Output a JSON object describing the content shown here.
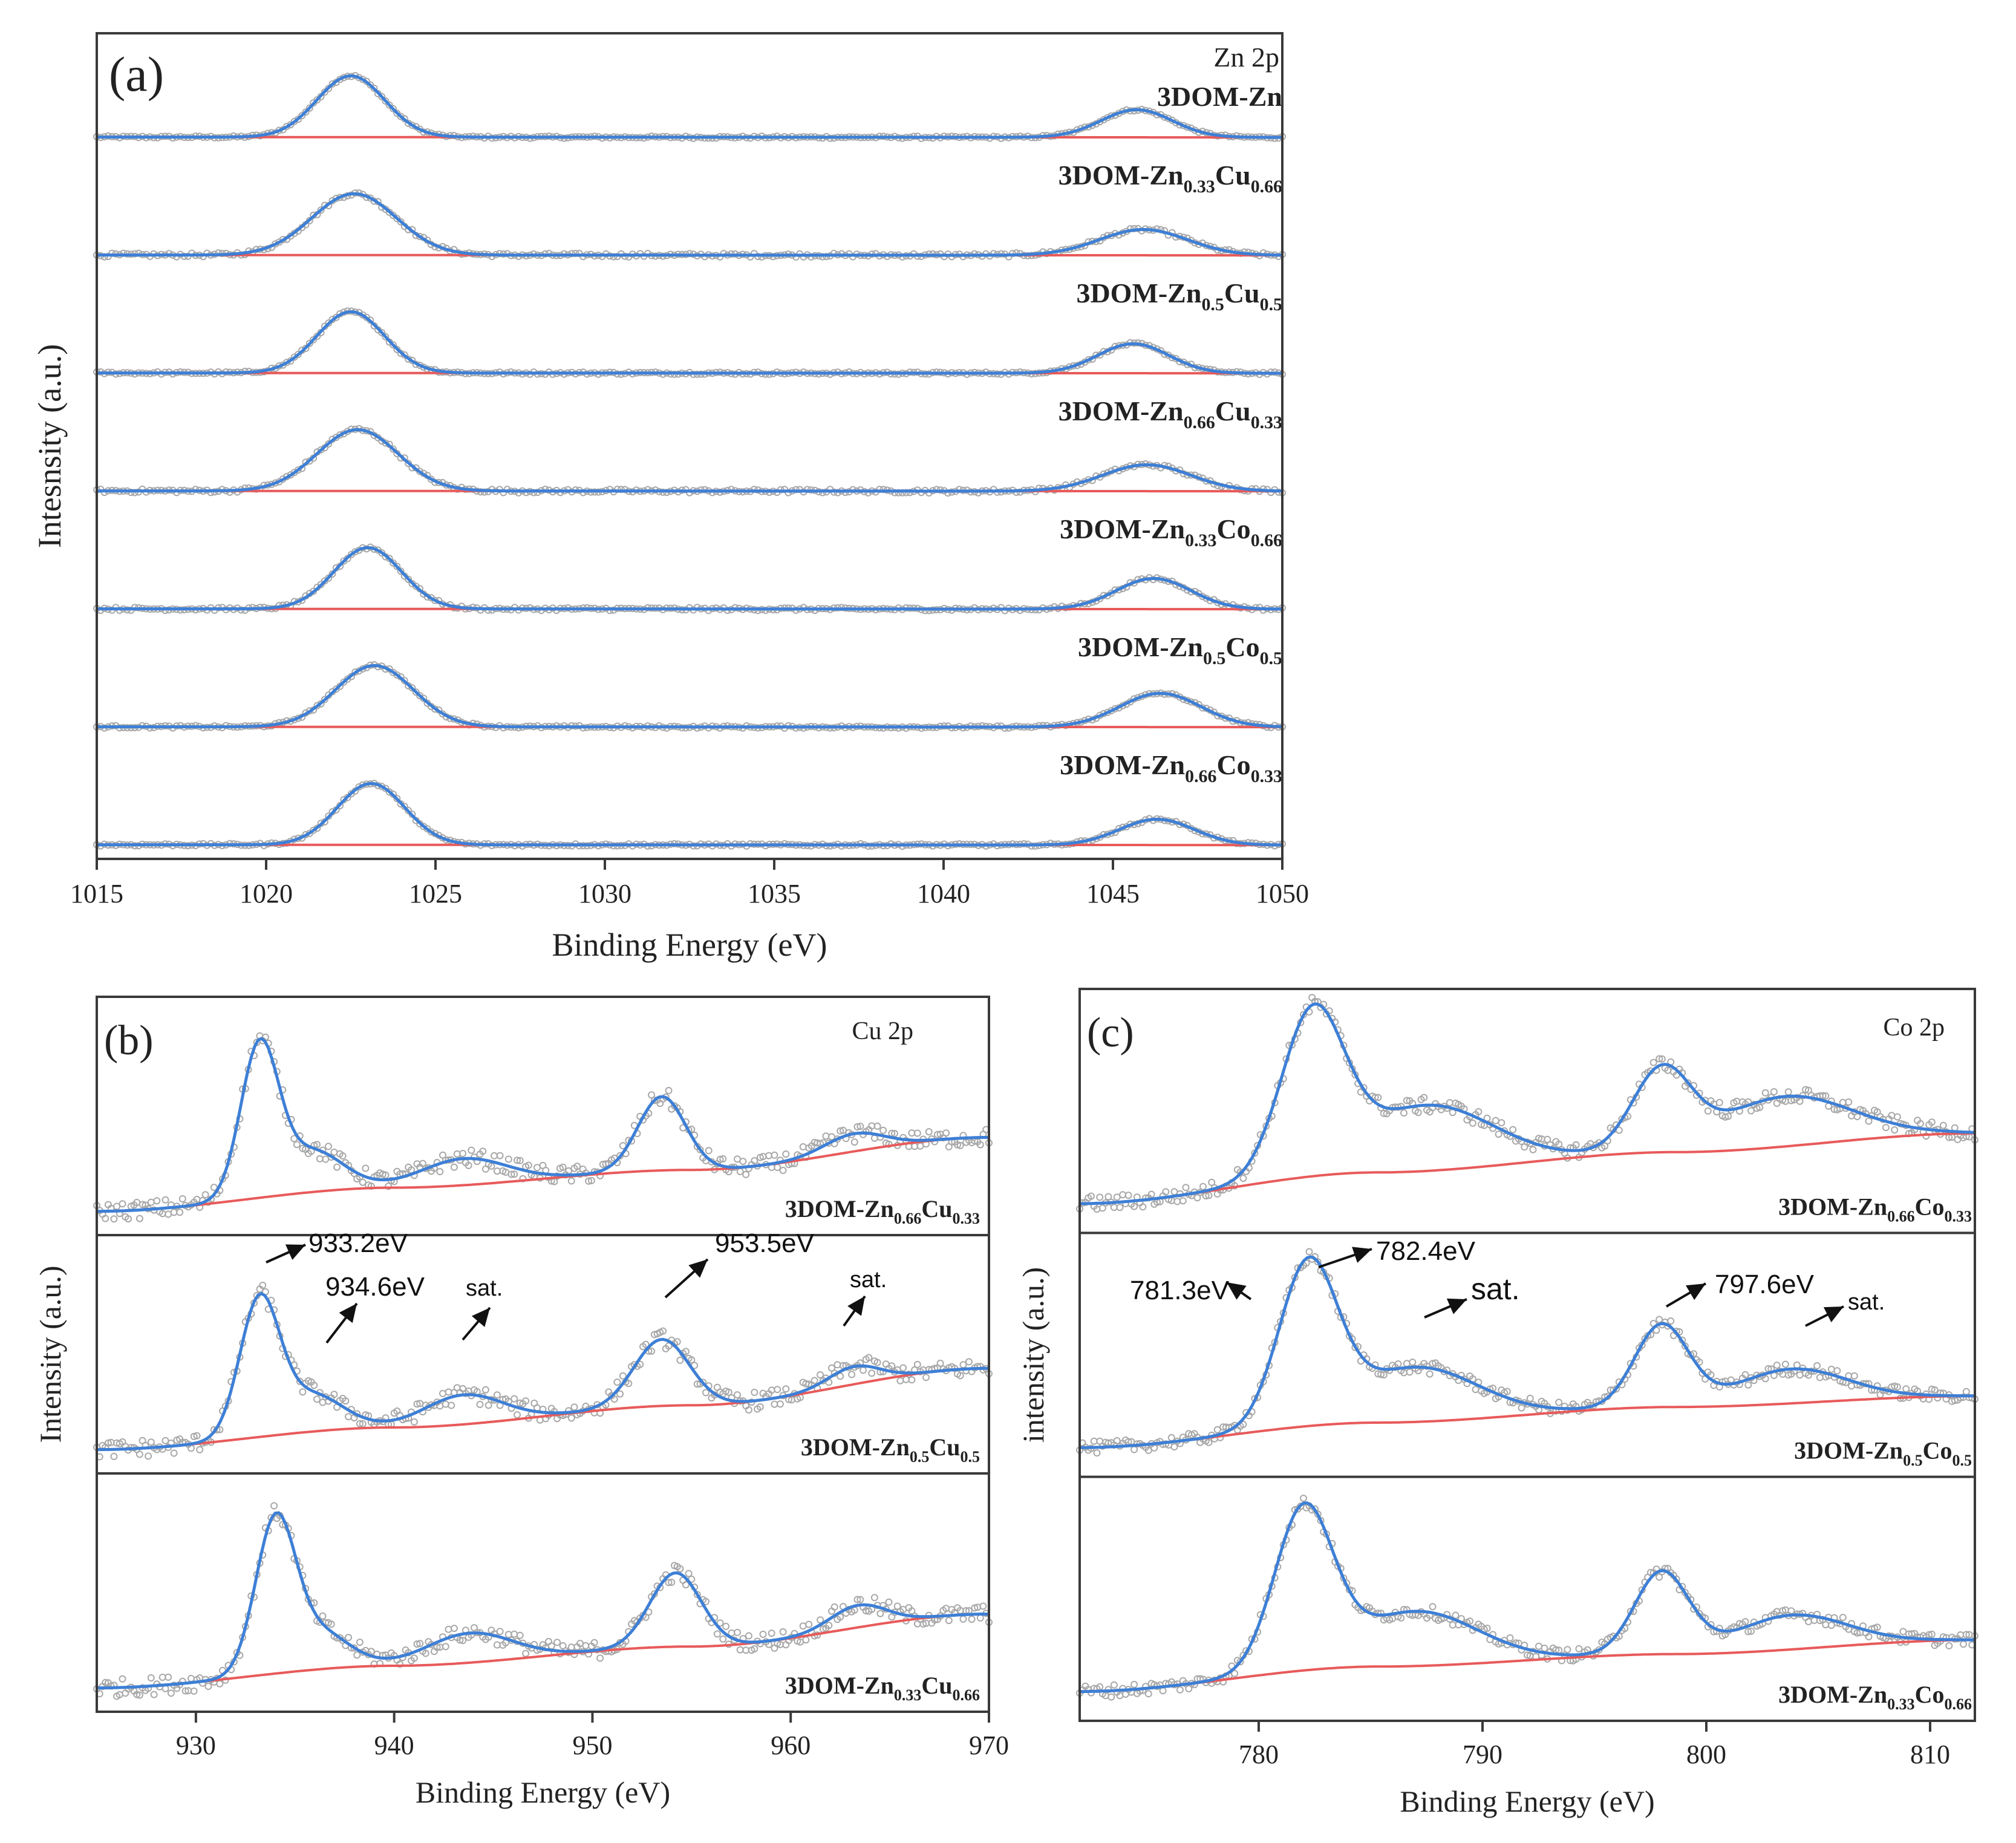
{
  "chart_data": [
    {
      "panel": "(a)",
      "type": "line",
      "title": "Zn 2p",
      "xlabel": "Binding Energy (eV)",
      "ylabel": "Intesnsity (a.u.)",
      "xlim": [
        1015,
        1050
      ],
      "xticks": [
        1015,
        1020,
        1025,
        1030,
        1035,
        1040,
        1045,
        1050
      ],
      "series": [
        {
          "name": "3DOM-Zn",
          "label_main": "3DOM-Zn",
          "subs": [],
          "peaks": [
            {
              "x": 1022.5,
              "h": 1.0,
              "w": 1.0
            },
            {
              "x": 1045.7,
              "h": 0.45,
              "w": 1.05
            }
          ],
          "noise": 0.018
        },
        {
          "name": "3DOM-Zn0.33Cu0.66",
          "label_main": "3DOM-Zn",
          "subs": [
            "0.33",
            "Cu",
            "0.66"
          ],
          "peaks": [
            {
              "x": 1022.6,
              "h": 1.0,
              "w": 1.25
            },
            {
              "x": 1045.9,
              "h": 0.42,
              "w": 1.3
            }
          ],
          "noise": 0.03
        },
        {
          "name": "3DOM-Zn0.5Cu0.5",
          "label_main": "3DOM-Zn",
          "subs": [
            "0.5",
            "Cu",
            "0.5"
          ],
          "peaks": [
            {
              "x": 1022.5,
              "h": 1.0,
              "w": 1.0
            },
            {
              "x": 1045.6,
              "h": 0.48,
              "w": 1.05
            }
          ],
          "noise": 0.02
        },
        {
          "name": "3DOM-Zn0.66Cu0.33",
          "label_main": "3DOM-Zn",
          "subs": [
            "0.66",
            "Cu",
            "0.33"
          ],
          "peaks": [
            {
              "x": 1022.7,
              "h": 1.0,
              "w": 1.2
            },
            {
              "x": 1046.0,
              "h": 0.43,
              "w": 1.3
            }
          ],
          "noise": 0.03
        },
        {
          "name": "3DOM-Zn0.33Co0.66",
          "label_main": "3DOM-Zn",
          "subs": [
            "0.33",
            "Co",
            "0.66"
          ],
          "peaks": [
            {
              "x": 1023.0,
              "h": 1.0,
              "w": 1.0
            },
            {
              "x": 1046.2,
              "h": 0.5,
              "w": 1.1
            }
          ],
          "noise": 0.025
        },
        {
          "name": "3DOM-Zn0.5Co0.5",
          "label_main": "3DOM-Zn",
          "subs": [
            "0.5",
            "Co",
            "0.5"
          ],
          "peaks": [
            {
              "x": 1023.2,
              "h": 1.0,
              "w": 1.15
            },
            {
              "x": 1046.4,
              "h": 0.55,
              "w": 1.2
            }
          ],
          "noise": 0.02
        },
        {
          "name": "3DOM-Zn0.66Co0.33",
          "label_main": "3DOM-Zn",
          "subs": [
            "0.66",
            "Co",
            "0.33"
          ],
          "peaks": [
            {
              "x": 1023.1,
              "h": 1.0,
              "w": 1.0
            },
            {
              "x": 1046.3,
              "h": 0.42,
              "w": 1.1
            }
          ],
          "noise": 0.02
        }
      ],
      "label_extra": "3DOM-Zn"
    },
    {
      "panel": "(b)",
      "type": "line",
      "title": "Cu 2p",
      "xlabel": "Binding Energy (eV)",
      "ylabel": "Intensity (a.u.)",
      "xlim": [
        925,
        970
      ],
      "xticks": [
        930,
        940,
        950,
        960,
        970
      ],
      "series": [
        {
          "name": "3DOM-Zn0.66Cu0.33",
          "label_main": "3DOM-Zn",
          "subs": [
            "0.66",
            "Cu",
            "0.33"
          ],
          "peaks": [
            {
              "x": 933.2,
              "h": 1.0,
              "w": 0.95
            },
            {
              "x": 935.8,
              "h": 0.28,
              "w": 1.6
            },
            {
              "x": 943.5,
              "h": 0.18,
              "w": 2.2
            },
            {
              "x": 953.5,
              "h": 0.5,
              "w": 1.2
            },
            {
              "x": 963.2,
              "h": 0.12,
              "w": 1.5
            }
          ],
          "bg": [
            0.0,
            0.16,
            0.28,
            0.5
          ],
          "noise": 0.06
        },
        {
          "name": "3DOM-Zn0.5Cu0.5",
          "label_main": "3DOM-Zn",
          "subs": [
            "0.5",
            "Cu",
            "0.5"
          ],
          "peaks": [
            {
              "x": 933.2,
              "h": 0.9,
              "w": 1.0
            },
            {
              "x": 935.8,
              "h": 0.25,
              "w": 1.6
            },
            {
              "x": 943.5,
              "h": 0.2,
              "w": 2.0
            },
            {
              "x": 953.5,
              "h": 0.45,
              "w": 1.4
            },
            {
              "x": 963.2,
              "h": 0.12,
              "w": 1.3
            }
          ],
          "bg": [
            0.0,
            0.15,
            0.3,
            0.55
          ],
          "noise": 0.06
        },
        {
          "name": "3DOM-Zn0.33Cu0.66",
          "label_main": "3DOM-Zn",
          "subs": [
            "0.33",
            "Cu",
            "0.66"
          ],
          "peaks": [
            {
              "x": 934.0,
              "h": 1.0,
              "w": 1.0
            },
            {
              "x": 936.2,
              "h": 0.25,
              "w": 1.5
            },
            {
              "x": 943.8,
              "h": 0.2,
              "w": 2.2
            },
            {
              "x": 954.2,
              "h": 0.5,
              "w": 1.3
            },
            {
              "x": 963.4,
              "h": 0.15,
              "w": 1.4
            }
          ],
          "bg": [
            0.0,
            0.15,
            0.28,
            0.5
          ],
          "noise": 0.06
        }
      ],
      "annotations": [
        "933.2eV",
        "934.6eV",
        "sat.",
        "953.5eV",
        "sat."
      ]
    },
    {
      "panel": "(c)",
      "type": "line",
      "title": "Co 2p",
      "xlabel": "Binding Energy (eV)",
      "ylabel": "intensity (a.u.)",
      "xlim": [
        772,
        812
      ],
      "xticks": [
        780,
        790,
        800,
        810
      ],
      "series": [
        {
          "name": "3DOM-Zn0.66Co0.33",
          "label_main": "3DOM-Zn",
          "subs": [
            "0.66",
            "Co",
            "0.33"
          ],
          "peaks": [
            {
              "x": 782.4,
              "h": 1.0,
              "w": 1.4
            },
            {
              "x": 787.5,
              "h": 0.42,
              "w": 3.0
            },
            {
              "x": 798.0,
              "h": 0.5,
              "w": 1.3
            },
            {
              "x": 803.5,
              "h": 0.32,
              "w": 3.0
            }
          ],
          "bg": [
            0.0,
            0.2,
            0.33,
            0.45
          ],
          "noise": 0.05
        },
        {
          "name": "3DOM-Zn0.5Co0.5",
          "label_main": "3DOM-Zn",
          "subs": [
            "0.5",
            "Co",
            "0.5"
          ],
          "peaks": [
            {
              "x": 782.2,
              "h": 1.0,
              "w": 1.3
            },
            {
              "x": 787.0,
              "h": 0.35,
              "w": 2.8
            },
            {
              "x": 798.0,
              "h": 0.52,
              "w": 1.2
            },
            {
              "x": 803.8,
              "h": 0.22,
              "w": 2.5
            }
          ],
          "bg": [
            0.0,
            0.16,
            0.26,
            0.33
          ],
          "noise": 0.04
        },
        {
          "name": "3DOM-Zn0.33Co0.66",
          "label_main": "3DOM-Zn",
          "subs": [
            "0.33",
            "Co",
            "0.66"
          ],
          "peaks": [
            {
              "x": 782.0,
              "h": 1.0,
              "w": 1.3
            },
            {
              "x": 787.0,
              "h": 0.35,
              "w": 2.8
            },
            {
              "x": 798.0,
              "h": 0.52,
              "w": 1.2
            },
            {
              "x": 803.8,
              "h": 0.22,
              "w": 2.5
            }
          ],
          "bg": [
            0.0,
            0.16,
            0.24,
            0.33
          ],
          "noise": 0.04
        }
      ],
      "annotations": [
        "781.3eV",
        "782.4eV",
        "sat.",
        "797.6eV",
        "sat."
      ]
    }
  ]
}
